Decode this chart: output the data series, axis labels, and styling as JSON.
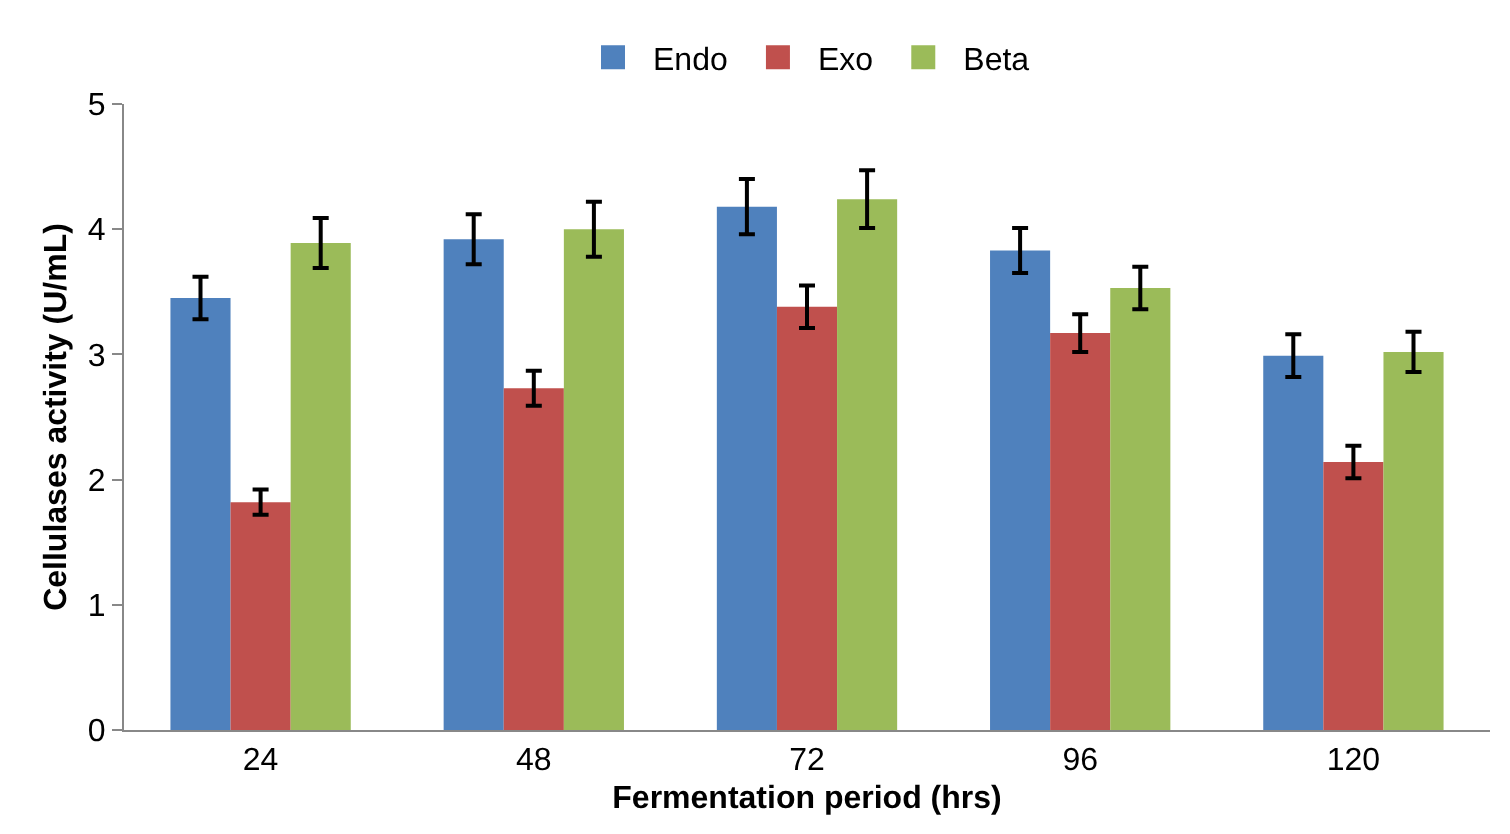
{
  "chart_data": {
    "type": "bar",
    "xlabel": "Fermentation period (hrs)",
    "ylabel": "Cellulases activity (U/mL)",
    "categories": [
      "24",
      "48",
      "72",
      "96",
      "120"
    ],
    "series": [
      {
        "name": "Endo",
        "color": "#4f81bd",
        "values": [
          3.45,
          3.92,
          4.18,
          3.83,
          2.99
        ],
        "errors": [
          0.17,
          0.2,
          0.22,
          0.18,
          0.17
        ]
      },
      {
        "name": "Exo",
        "color": "#c0504d",
        "values": [
          1.82,
          2.73,
          3.38,
          3.17,
          2.14
        ],
        "errors": [
          0.1,
          0.14,
          0.17,
          0.15,
          0.13
        ]
      },
      {
        "name": "Beta",
        "color": "#9bbb59",
        "values": [
          3.89,
          4.0,
          4.24,
          3.53,
          3.02
        ],
        "errors": [
          0.2,
          0.22,
          0.23,
          0.17,
          0.16
        ]
      }
    ],
    "ylim": [
      0,
      5
    ],
    "yticks": [
      0,
      1,
      2,
      3,
      4,
      5
    ],
    "grid": false,
    "legend": "top"
  }
}
